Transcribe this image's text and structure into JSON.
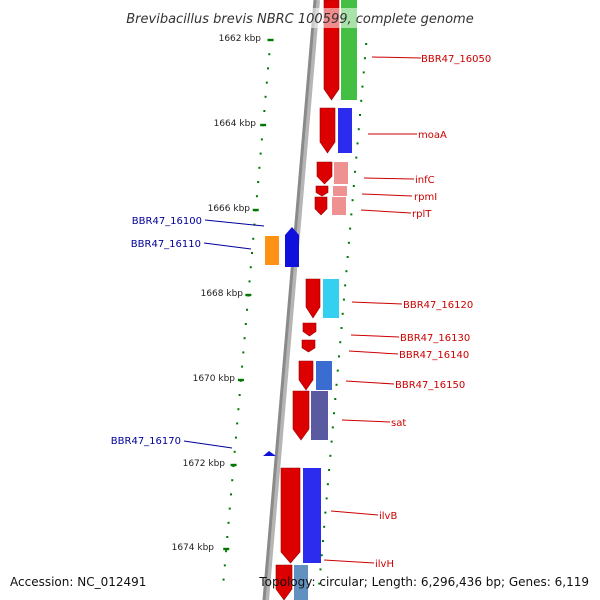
{
  "title": "Brevibacillus brevis NBRC 100599, complete genome",
  "accession": "Accession: NC_012491",
  "topology": "Topology: circular; Length: 6,296,436 bp; Genes: 6,119",
  "colors": {
    "forward_label": "#cc0000",
    "reverse_label": "#000099",
    "tick": "#007700",
    "backbone": "#8a8a8a"
  },
  "scale_labels": [
    "1662 kbp",
    "1664 kbp",
    "1666 kbp",
    "1668 kbp",
    "1670 kbp",
    "1672 kbp",
    "1674 kbp"
  ],
  "forward_genes": [
    {
      "label": "BBR47_16050",
      "color": "#dd0000",
      "paired": "#33bb33"
    },
    {
      "label": "moaA",
      "color": "#dd0000",
      "paired": "#1a1aee"
    },
    {
      "label": "infC",
      "color": "#dd0000",
      "paired": "#ee8888"
    },
    {
      "label": "rpmI",
      "color": "#dd0000",
      "paired": "#ee8888"
    },
    {
      "label": "rplT",
      "color": "#dd0000",
      "paired": "#ee8888"
    },
    {
      "label": "BBR47_16120",
      "color": "#dd0000",
      "paired": "#22ccee"
    },
    {
      "label": "BBR47_16130",
      "color": "#dd0000",
      "paired": ""
    },
    {
      "label": "BBR47_16140",
      "color": "#dd0000",
      "paired": ""
    },
    {
      "label": "BBR47_16150",
      "color": "#dd0000",
      "paired": "#2a5fcc"
    },
    {
      "label": "sat",
      "color": "#dd0000",
      "paired": "#4c4c99"
    },
    {
      "label": "ilvB",
      "color": "#dd0000",
      "paired": "#1a1aee"
    },
    {
      "label": "ilvH",
      "color": "#dd0000",
      "paired": "#5588bb"
    }
  ],
  "reverse_genes": [
    {
      "label": "BBR47_16100",
      "color": "#1010dd"
    },
    {
      "label": "BBR47_16110",
      "color": "#1010dd",
      "paired": "#ff8800"
    },
    {
      "label": "BBR47_16170",
      "color": "#1010dd"
    }
  ]
}
